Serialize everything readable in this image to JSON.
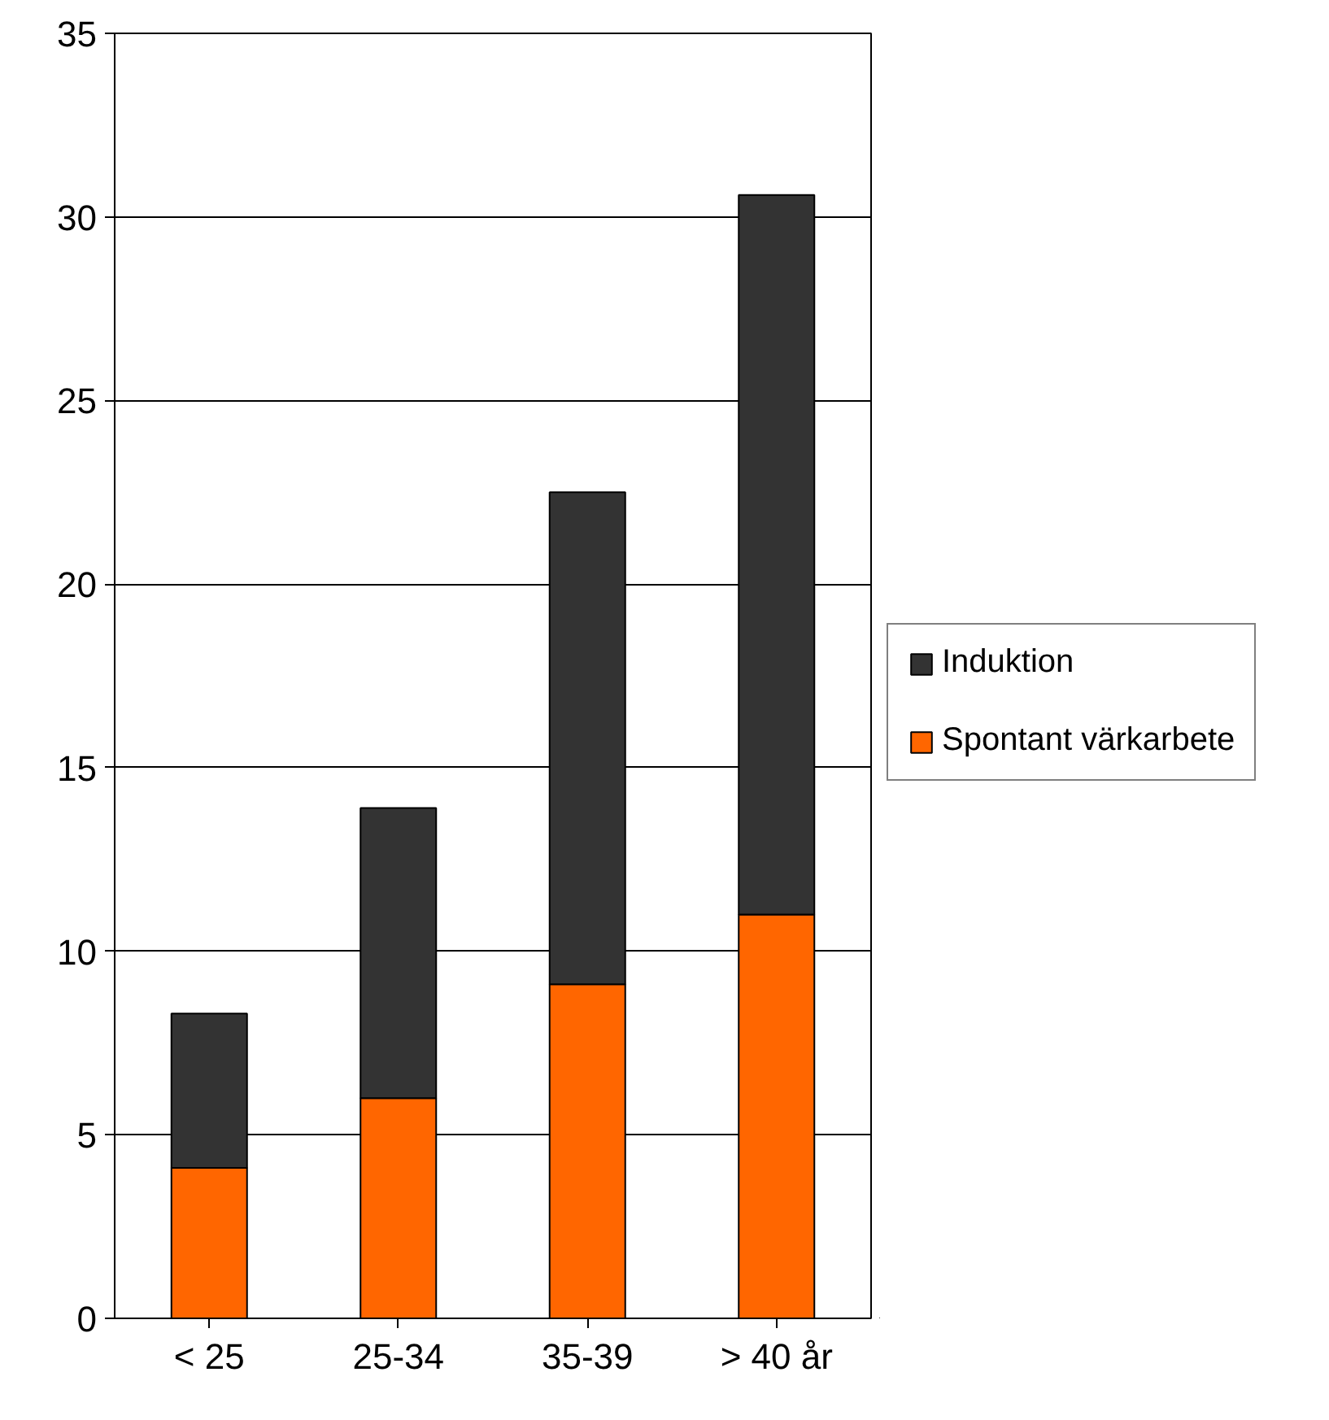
{
  "chart_data": {
    "type": "bar",
    "stacked": true,
    "categories": [
      "< 25",
      "25-34",
      "35-39",
      "> 40 år"
    ],
    "series": [
      {
        "name": "Spontant värkarbete",
        "color": "#ff6600",
        "values": [
          4.1,
          6.0,
          9.1,
          11.0
        ]
      },
      {
        "name": "Induktion",
        "color": "#333333",
        "values": [
          4.2,
          7.9,
          13.4,
          19.6
        ]
      }
    ],
    "ylim": [
      0,
      35
    ],
    "yticks": [
      0,
      5,
      10,
      15,
      20,
      25,
      30,
      35
    ],
    "grid": "y",
    "legend": "right"
  }
}
